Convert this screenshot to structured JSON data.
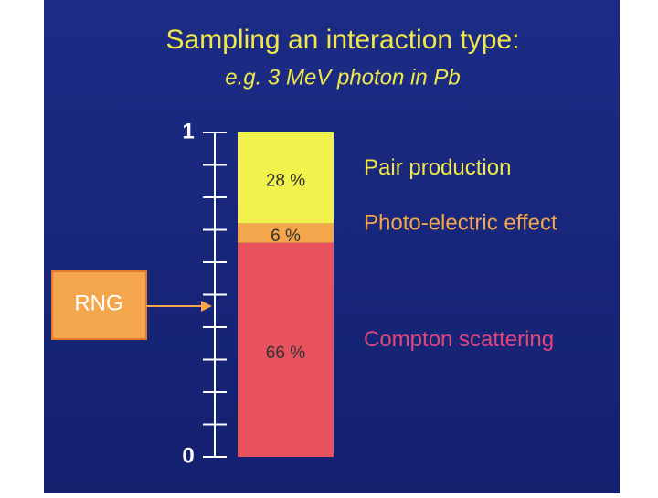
{
  "chart_data": {
    "type": "stacked-bar",
    "title": "Sampling an interaction type:",
    "subtitle": "e.g. 3 MeV photon in Pb",
    "annotation": "RNG",
    "ylim": [
      0,
      1
    ],
    "yticks": [
      0,
      1
    ],
    "yminorticks": [
      0.1,
      0.2,
      0.3,
      0.4,
      0.5,
      0.6,
      0.7,
      0.8,
      0.9
    ],
    "series": [
      {
        "name": "Compton scattering",
        "color": "#e8525f",
        "label_color": "#e2457a",
        "values": [
          0.66
        ],
        "value_labels": [
          "66 %"
        ]
      },
      {
        "name": "Photo-electric effect",
        "color": "#f4a64c",
        "label_color": "#f4a64c",
        "values": [
          0.06
        ],
        "value_labels": [
          "6 %"
        ]
      },
      {
        "name": "Pair production",
        "color": "#f2f24c",
        "label_color": "#f0e84a",
        "values": [
          0.28
        ],
        "value_labels": [
          "28 %"
        ]
      }
    ]
  }
}
